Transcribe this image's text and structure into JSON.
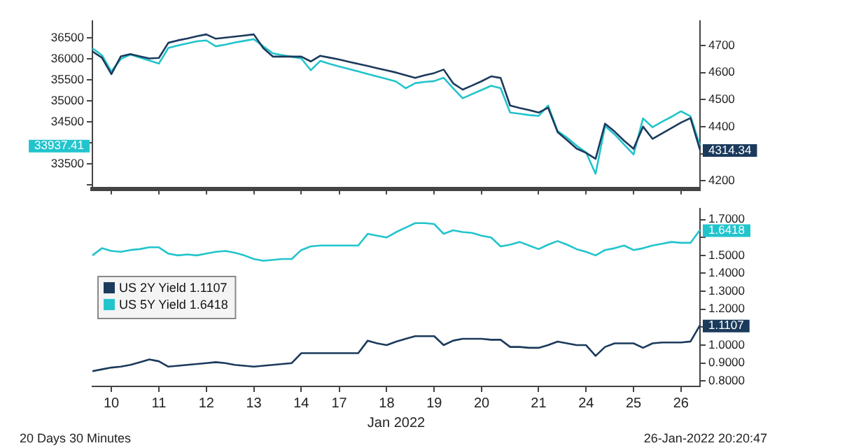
{
  "chart_data": [
    {
      "type": "line",
      "tick_labels": "y",
      "grid": false,
      "legend": false,
      "marker": "none",
      "categories": [
        null,
        null,
        "10",
        null,
        null,
        null,
        null,
        "11",
        null,
        null,
        null,
        null,
        "12",
        null,
        null,
        null,
        null,
        "13",
        null,
        null,
        null,
        null,
        "14",
        null,
        null,
        null,
        "17",
        null,
        null,
        null,
        null,
        "18",
        null,
        null,
        null,
        null,
        "19",
        null,
        null,
        null,
        null,
        "20",
        null,
        null,
        null,
        null,
        null,
        "21",
        null,
        null,
        null,
        null,
        "24",
        null,
        null,
        null,
        null,
        "25",
        null,
        null,
        null,
        null,
        "26",
        null,
        null
      ],
      "ylim": [
        32900,
        36900
      ],
      "yticks": [
        {
          "value": 33000,
          "label": null
        },
        33500,
        {
          "value": 34000,
          "label": null
        },
        34500,
        35000,
        35500,
        36000,
        36500
      ],
      "y2lim": [
        4170,
        4790
      ],
      "y2ticks": [
        4200,
        {
          "value": 4300,
          "label": null
        },
        4400,
        4500,
        4600,
        4700
      ],
      "series": [
        {
          "axis": "y2",
          "color": "#1b3a5c",
          "values": [
            4678,
            4655,
            4594,
            4660,
            4668,
            4660,
            4652,
            4654,
            4710,
            4719,
            4726,
            4734,
            4741,
            4725,
            4729,
            4733,
            4737,
            4741,
            4690,
            4659,
            4659,
            4659,
            4659,
            4641,
            4662,
            4655,
            4648,
            4640,
            4632,
            4624,
            4616,
            4608,
            4600,
            4590,
            4580,
            4590,
            4598,
            4611,
            4560,
            4537,
            4552,
            4568,
            4586,
            4580,
            4478,
            4469,
            4461,
            4452,
            4470,
            4380,
            4350,
            4319,
            4303,
            4281,
            4411,
            4382,
            4348,
            4318,
            4400,
            4355,
            4375,
            4395,
            4415,
            4432,
            4314.34
          ]
        },
        {
          "axis": "y",
          "color": "#22c4cc",
          "values": [
            36250,
            36090,
            35700,
            36000,
            36100,
            36030,
            35960,
            35890,
            36260,
            36320,
            36370,
            36420,
            36440,
            36300,
            36340,
            36390,
            36430,
            36470,
            36300,
            36130,
            36090,
            36050,
            36010,
            35730,
            35950,
            35880,
            35820,
            35760,
            35700,
            35640,
            35580,
            35520,
            35460,
            35300,
            35420,
            35450,
            35470,
            35550,
            35300,
            35060,
            35160,
            35260,
            35360,
            35300,
            34720,
            34690,
            34660,
            34640,
            34890,
            34280,
            34120,
            33930,
            33770,
            33260,
            34400,
            34200,
            33960,
            33720,
            34580,
            34370,
            34500,
            34620,
            34750,
            34630,
            33937.41
          ]
        }
      ],
      "annotations": [
        "4314.34",
        "33937.41"
      ]
    },
    {
      "type": "line",
      "grid": false,
      "legend": "left",
      "marker": "none",
      "xlabel": "Jan 2022",
      "categories": [
        null,
        null,
        "10",
        null,
        null,
        null,
        null,
        "11",
        null,
        null,
        null,
        null,
        "12",
        null,
        null,
        null,
        null,
        "13",
        null,
        null,
        null,
        null,
        "14",
        null,
        null,
        null,
        "17",
        null,
        null,
        null,
        null,
        "18",
        null,
        null,
        null,
        null,
        "19",
        null,
        null,
        null,
        null,
        "20",
        null,
        null,
        null,
        null,
        null,
        "21",
        null,
        null,
        null,
        null,
        "24",
        null,
        null,
        null,
        null,
        "25",
        null,
        null,
        null,
        null,
        "26",
        null,
        null
      ],
      "y2lim": [
        0.77,
        1.76
      ],
      "y2ticks": [
        {
          "value": 0.8,
          "label": "0.8000"
        },
        {
          "value": 0.9,
          "label": "0.9000"
        },
        {
          "value": 1.0,
          "label": "1.0000"
        },
        {
          "value": 1.1,
          "label": null
        },
        {
          "value": 1.2,
          "label": "1.2000"
        },
        {
          "value": 1.3,
          "label": "1.3000"
        },
        {
          "value": 1.4,
          "label": "1.4000"
        },
        {
          "value": 1.5,
          "label": "1.5000"
        },
        {
          "value": 1.6,
          "label": null
        },
        {
          "value": 1.7,
          "label": "1.7000"
        }
      ],
      "series": [
        {
          "axis": "y2",
          "name": "US 2Y Yield 1.1107",
          "color": "#1b3a5c",
          "values": [
            0.855,
            0.865,
            0.875,
            0.88,
            0.89,
            0.905,
            0.92,
            0.91,
            0.88,
            0.885,
            0.89,
            0.895,
            0.9,
            0.905,
            0.9,
            0.89,
            0.885,
            0.88,
            0.885,
            0.89,
            0.895,
            0.9,
            0.955,
            0.955,
            0.955,
            0.955,
            0.955,
            0.955,
            0.955,
            1.025,
            1.01,
            1.0,
            1.02,
            1.035,
            1.05,
            1.05,
            1.05,
            1.0,
            1.025,
            1.035,
            1.035,
            1.035,
            1.03,
            1.03,
            0.99,
            0.99,
            0.985,
            0.985,
            1.0,
            1.02,
            1.01,
            1.0,
            1.0,
            0.94,
            0.99,
            1.01,
            1.01,
            1.01,
            0.985,
            1.01,
            1.015,
            1.015,
            1.015,
            1.02,
            1.1107
          ]
        },
        {
          "axis": "y2",
          "name": "US 5Y Yield 1.6418",
          "color": "#22c4cc",
          "values": [
            1.5,
            1.54,
            1.525,
            1.52,
            1.53,
            1.535,
            1.545,
            1.545,
            1.51,
            1.5,
            1.505,
            1.5,
            1.51,
            1.52,
            1.525,
            1.515,
            1.5,
            1.48,
            1.47,
            1.475,
            1.48,
            1.48,
            1.53,
            1.55,
            1.555,
            1.555,
            1.555,
            1.555,
            1.555,
            1.62,
            1.61,
            1.6,
            1.63,
            1.655,
            1.68,
            1.68,
            1.675,
            1.62,
            1.64,
            1.63,
            1.625,
            1.61,
            1.6,
            1.55,
            1.56,
            1.575,
            1.555,
            1.535,
            1.56,
            1.58,
            1.56,
            1.535,
            1.52,
            1.5,
            1.53,
            1.54,
            1.555,
            1.53,
            1.54,
            1.555,
            1.565,
            1.575,
            1.57,
            1.57,
            1.6418
          ]
        }
      ],
      "annotations": [
        "1.1107",
        "1.6418",
        "20 Days 30 Minutes",
        "26-Jan-2022 20:20:47"
      ]
    }
  ]
}
